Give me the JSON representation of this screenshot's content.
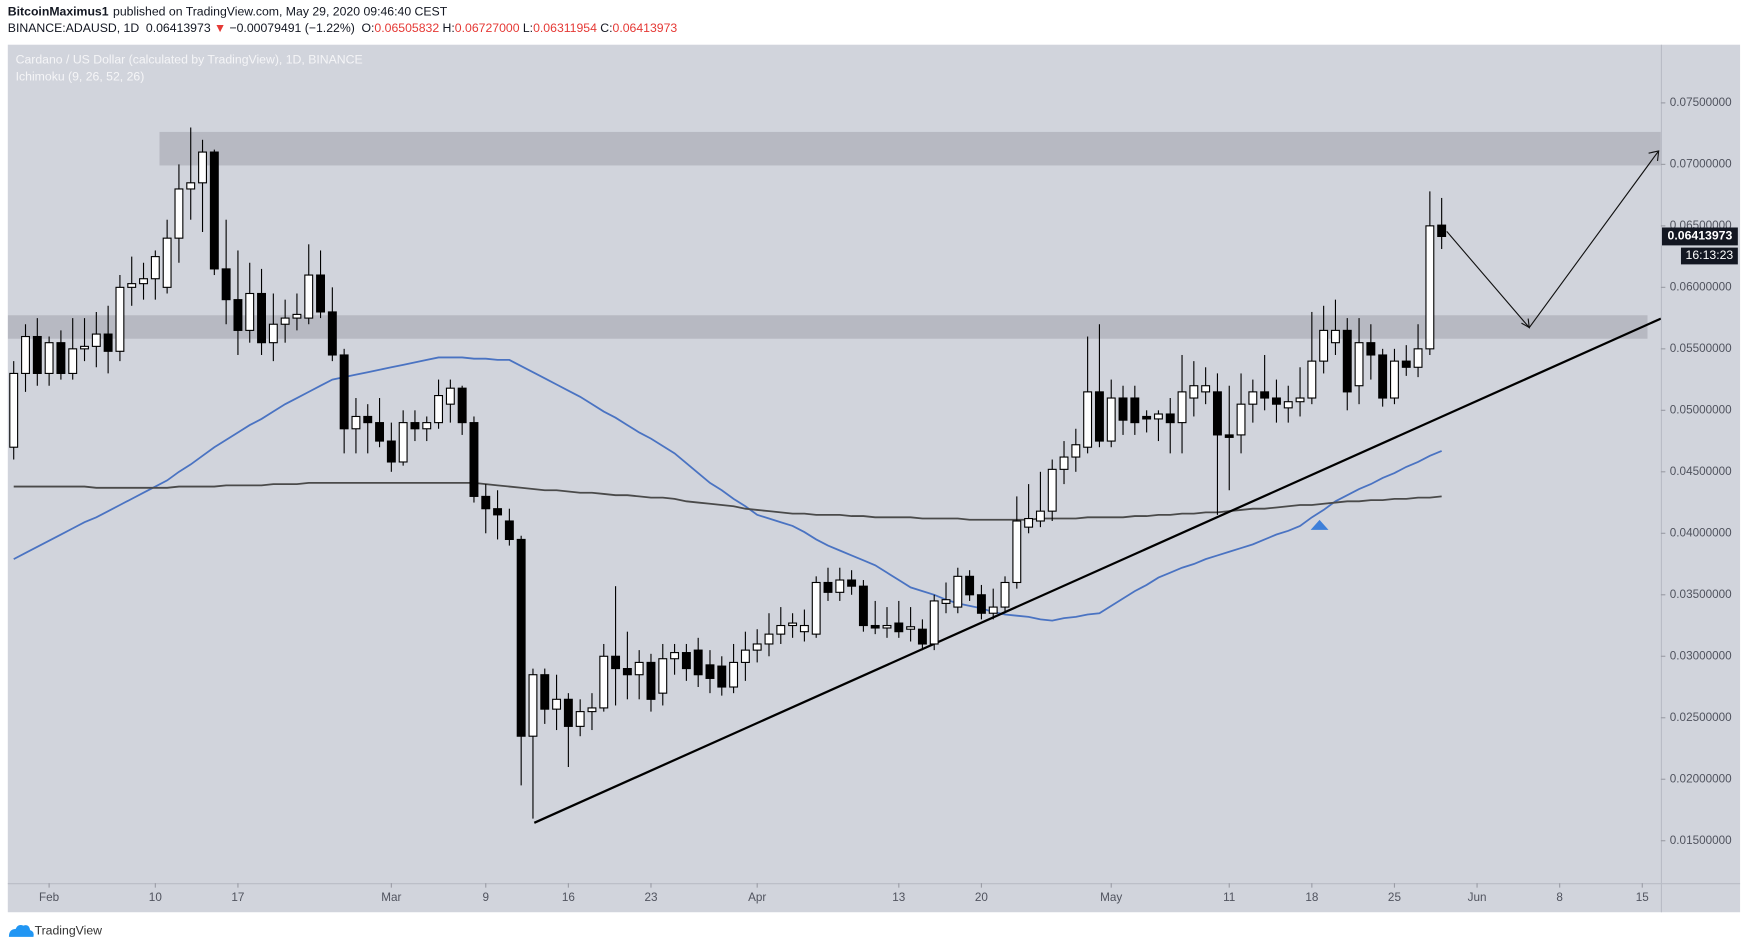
{
  "header": {
    "author": "BitcoinMaximus1",
    "published": "published on TradingView.com, May 29, 2020 09:46:40 CEST",
    "symbol": "BINANCE:ADAUSD, 1D",
    "last": "0.06413973",
    "arrow": "▼",
    "change": "−0.00079491 (−1.22%)",
    "ohlc": [
      {
        "label": "O:",
        "value": "0.06505832"
      },
      {
        "label": "H:",
        "value": "0.06727000"
      },
      {
        "label": "L:",
        "value": "0.06311954"
      },
      {
        "label": "C:",
        "value": "0.06413973"
      }
    ]
  },
  "chart_data": {
    "type": "candlestick",
    "title": "Cardano / US Dollar (calculated by TradingView), 1D, BINANCE",
    "subtitle": "Ichimoku (9, 26, 52, 26)",
    "last_price_label": "0.06413973",
    "countdown": "16:13:23",
    "up_color": "#ffffff",
    "down_color": "#000000",
    "wick_color": "#000000",
    "categories": [
      null,
      null,
      null,
      "Feb",
      null,
      null,
      null,
      null,
      null,
      null,
      null,
      null,
      "10",
      null,
      null,
      null,
      null,
      null,
      null,
      "17",
      null,
      null,
      null,
      null,
      null,
      null,
      null,
      null,
      null,
      null,
      null,
      null,
      "Mar",
      null,
      null,
      null,
      null,
      null,
      null,
      null,
      "9",
      null,
      null,
      null,
      null,
      null,
      null,
      "16",
      null,
      null,
      null,
      null,
      null,
      null,
      "23",
      null,
      null,
      null,
      null,
      null,
      null,
      null,
      null,
      "Apr",
      null,
      null,
      null,
      null,
      null,
      null,
      null,
      null,
      null,
      null,
      null,
      "13",
      null,
      null,
      null,
      null,
      null,
      null,
      "20",
      null,
      null,
      null,
      null,
      null,
      null,
      null,
      null,
      null,
      null,
      "May",
      null,
      null,
      null,
      null,
      null,
      null,
      null,
      null,
      null,
      "11",
      null,
      null,
      null,
      null,
      null,
      null,
      "18",
      null,
      null,
      null,
      null,
      null,
      null,
      "25",
      null,
      null,
      null,
      null,
      null,
      null,
      "Jun",
      null,
      null,
      null,
      null,
      null,
      null,
      "8",
      null,
      null,
      null,
      null,
      null,
      null,
      "15",
      null,
      null
    ],
    "open": [
      0.047,
      0.053,
      0.056,
      0.053,
      0.0555,
      0.053,
      0.055,
      0.0552,
      0.0562,
      0.0548,
      0.06,
      0.0603,
      0.0607,
      0.06,
      0.064,
      0.068,
      0.0685,
      0.071,
      0.0615,
      0.059,
      0.0565,
      0.0595,
      0.0555,
      0.057,
      0.0575,
      0.0575,
      0.061,
      0.058,
      0.0545,
      0.0485,
      0.0495,
      0.049,
      0.0475,
      0.0458,
      0.049,
      0.0485,
      0.049,
      0.0505,
      0.0518,
      0.049,
      0.043,
      0.042,
      0.041,
      0.0395,
      0.0235,
      0.0285,
      0.0257,
      0.0265,
      0.0243,
      0.0255,
      0.0258,
      0.03,
      0.029,
      0.0285,
      0.0295,
      0.027,
      0.0298,
      0.0303,
      0.0305,
      0.0293,
      0.0292,
      0.0275,
      0.0295,
      0.0305,
      0.031,
      0.0318,
      0.0325,
      0.032,
      0.0318,
      0.036,
      0.0352,
      0.0362,
      0.0357,
      0.0325,
      0.0323,
      0.0327,
      0.0322,
      0.0322,
      0.031,
      0.0343,
      0.034,
      0.0365,
      0.035,
      0.0335,
      0.034,
      0.036,
      0.0405,
      0.041,
      0.0418,
      0.0452,
      0.0462,
      0.047,
      0.0515,
      0.0475,
      0.051,
      0.051,
      0.0495,
      0.0493,
      0.0497,
      0.049,
      0.051,
      0.0515,
      0.0515,
      0.048,
      0.048,
      0.0505,
      0.0515,
      0.051,
      0.0502,
      0.0507,
      0.051,
      0.054,
      0.0555,
      0.0565,
      0.052,
      0.0555,
      0.0545,
      0.051,
      0.054,
      0.0535,
      0.055,
      0.06505832,
      null,
      null,
      null,
      null,
      null,
      null,
      null,
      null,
      null,
      null,
      null,
      null,
      null,
      null,
      null,
      null,
      null,
      null,
      null
    ],
    "high": [
      0.054,
      0.057,
      0.0575,
      0.056,
      0.0565,
      0.0575,
      0.0575,
      0.058,
      0.0585,
      0.061,
      0.0625,
      0.062,
      0.063,
      0.0655,
      0.07,
      0.073,
      0.072,
      0.0712,
      0.0655,
      0.063,
      0.062,
      0.0615,
      0.0595,
      0.059,
      0.0595,
      0.0635,
      0.063,
      0.06,
      0.055,
      0.051,
      0.0505,
      0.051,
      0.049,
      0.05,
      0.05,
      0.0495,
      0.0525,
      0.0525,
      0.052,
      0.0495,
      0.044,
      0.0435,
      0.042,
      0.0398,
      0.029,
      0.029,
      0.0285,
      0.027,
      0.0265,
      0.027,
      0.031,
      0.0357,
      0.032,
      0.0305,
      0.0302,
      0.031,
      0.031,
      0.031,
      0.0315,
      0.0305,
      0.03,
      0.031,
      0.032,
      0.0322,
      0.0335,
      0.034,
      0.0335,
      0.0338,
      0.0365,
      0.0372,
      0.0372,
      0.037,
      0.0362,
      0.0345,
      0.034,
      0.0345,
      0.034,
      0.033,
      0.035,
      0.036,
      0.0372,
      0.037,
      0.0358,
      0.0355,
      0.0365,
      0.043,
      0.044,
      0.045,
      0.046,
      0.0475,
      0.0485,
      0.056,
      0.057,
      0.0525,
      0.052,
      0.052,
      0.05,
      0.05,
      0.051,
      0.0545,
      0.054,
      0.0535,
      0.053,
      0.052,
      0.053,
      0.0525,
      0.0545,
      0.0525,
      0.052,
      0.0535,
      0.058,
      0.0585,
      0.059,
      0.0575,
      0.0575,
      0.057,
      0.055,
      0.055,
      0.0553,
      0.057,
      0.0678,
      0.06727,
      null,
      null,
      null,
      null,
      null,
      null,
      null,
      null,
      null,
      null,
      null,
      null,
      null,
      null,
      null,
      null,
      null,
      null,
      null
    ],
    "low": [
      0.046,
      0.0515,
      0.052,
      0.052,
      0.0525,
      0.0525,
      0.054,
      0.0535,
      0.053,
      0.054,
      0.0585,
      0.059,
      0.059,
      0.0595,
      0.062,
      0.0655,
      0.0645,
      0.061,
      0.057,
      0.0545,
      0.0555,
      0.0545,
      0.054,
      0.0555,
      0.0565,
      0.057,
      0.0575,
      0.054,
      0.0465,
      0.0465,
      0.0465,
      0.047,
      0.045,
      0.0455,
      0.0475,
      0.0475,
      0.0485,
      0.049,
      0.048,
      0.0425,
      0.04,
      0.0395,
      0.039,
      0.0195,
      0.0168,
      0.0245,
      0.024,
      0.021,
      0.0235,
      0.024,
      0.0255,
      0.026,
      0.0265,
      0.0265,
      0.0255,
      0.026,
      0.0285,
      0.028,
      0.0275,
      0.027,
      0.0268,
      0.027,
      0.028,
      0.0295,
      0.03,
      0.031,
      0.0315,
      0.0312,
      0.0315,
      0.0345,
      0.0345,
      0.035,
      0.032,
      0.0318,
      0.0315,
      0.0315,
      0.0312,
      0.0305,
      0.0305,
      0.0335,
      0.0335,
      0.0345,
      0.033,
      0.033,
      0.0335,
      0.0355,
      0.04,
      0.0405,
      0.041,
      0.044,
      0.045,
      0.0465,
      0.047,
      0.047,
      0.048,
      0.048,
      0.0482,
      0.0475,
      0.0465,
      0.0465,
      0.0495,
      0.0505,
      0.0415,
      0.0435,
      0.0465,
      0.049,
      0.05,
      0.049,
      0.049,
      0.0495,
      0.0505,
      0.053,
      0.0545,
      0.05,
      0.0505,
      0.0525,
      0.0503,
      0.0505,
      0.0528,
      0.0527,
      0.0545,
      0.06311954,
      null,
      null,
      null,
      null,
      null,
      null,
      null,
      null,
      null,
      null,
      null,
      null,
      null,
      null,
      null,
      null,
      null,
      null,
      null
    ],
    "close": [
      0.053,
      0.056,
      0.053,
      0.0555,
      0.053,
      0.055,
      0.0552,
      0.0562,
      0.0548,
      0.06,
      0.0603,
      0.0607,
      0.0625,
      0.064,
      0.068,
      0.0685,
      0.071,
      0.0615,
      0.059,
      0.0565,
      0.0595,
      0.0555,
      0.057,
      0.0575,
      0.0578,
      0.061,
      0.058,
      0.0545,
      0.0485,
      0.0495,
      0.049,
      0.0475,
      0.0458,
      0.049,
      0.0485,
      0.049,
      0.0512,
      0.0518,
      0.049,
      0.043,
      0.042,
      0.0415,
      0.0395,
      0.0235,
      0.0285,
      0.0257,
      0.0265,
      0.0243,
      0.0255,
      0.0258,
      0.03,
      0.029,
      0.0285,
      0.0295,
      0.0265,
      0.0298,
      0.0303,
      0.029,
      0.0285,
      0.0282,
      0.0275,
      0.0295,
      0.0305,
      0.031,
      0.0318,
      0.0325,
      0.0327,
      0.0325,
      0.036,
      0.0352,
      0.0362,
      0.0357,
      0.0325,
      0.0323,
      0.0325,
      0.032,
      0.0324,
      0.031,
      0.0345,
      0.0346,
      0.0365,
      0.035,
      0.0335,
      0.034,
      0.036,
      0.041,
      0.0412,
      0.0418,
      0.0452,
      0.0462,
      0.0472,
      0.0515,
      0.0475,
      0.051,
      0.0492,
      0.049,
      0.0493,
      0.0497,
      0.049,
      0.0515,
      0.052,
      0.052,
      0.048,
      0.0478,
      0.0505,
      0.0515,
      0.051,
      0.0505,
      0.0507,
      0.051,
      0.054,
      0.0565,
      0.0565,
      0.0515,
      0.0555,
      0.0545,
      0.051,
      0.054,
      0.0535,
      0.055,
      0.065,
      0.06413973,
      null,
      null,
      null,
      null,
      null,
      null,
      null,
      null,
      null,
      null,
      null,
      null,
      null,
      null,
      null,
      null,
      null,
      null,
      null
    ],
    "lines": [
      {
        "color": "#4a73c2",
        "values": [
          0.0379,
          0.0384,
          0.0389,
          0.0394,
          0.0399,
          0.0404,
          0.0409,
          0.0413,
          0.0418,
          0.0423,
          0.0428,
          0.0433,
          0.0438,
          0.0443,
          0.045,
          0.0456,
          0.0463,
          0.047,
          0.0476,
          0.0482,
          0.0488,
          0.0493,
          0.0499,
          0.0505,
          0.051,
          0.0515,
          0.052,
          0.0525,
          0.0527,
          0.0529,
          0.0531,
          0.0533,
          0.0535,
          0.0537,
          0.0539,
          0.0541,
          0.0543,
          0.0543,
          0.0543,
          0.0542,
          0.0542,
          0.0541,
          0.0541,
          0.0536,
          0.0531,
          0.0526,
          0.0521,
          0.0516,
          0.0511,
          0.0505,
          0.0499,
          0.0494,
          0.0488,
          0.0482,
          0.0477,
          0.0471,
          0.0465,
          0.0457,
          0.0449,
          0.0441,
          0.0435,
          0.0428,
          0.0422,
          0.0415,
          0.0412,
          0.0409,
          0.0406,
          0.0401,
          0.0395,
          0.039,
          0.0386,
          0.0382,
          0.0378,
          0.0374,
          0.0368,
          0.0362,
          0.0356,
          0.0353,
          0.035,
          0.0346,
          0.0343,
          0.0341,
          0.0339,
          0.0336,
          0.0334,
          0.0333,
          0.0332,
          0.033,
          0.0329,
          0.0331,
          0.0332,
          0.0334,
          0.0335,
          0.0341,
          0.0347,
          0.0353,
          0.0358,
          0.0364,
          0.0368,
          0.0372,
          0.0375,
          0.0379,
          0.0382,
          0.0385,
          0.0388,
          0.0391,
          0.0395,
          0.0399,
          0.0402,
          0.0406,
          0.0413,
          0.0419,
          0.0426,
          0.0431,
          0.0436,
          0.044,
          0.0445,
          0.0449,
          0.0454,
          0.0458,
          0.0463,
          0.0467,
          null,
          null,
          null,
          null,
          null,
          null,
          null,
          null,
          null,
          null,
          null,
          null,
          null,
          null,
          null,
          null,
          null,
          null,
          null
        ]
      },
      {
        "color": "#4a4a4a",
        "values": [
          0.0438,
          0.0438,
          0.0438,
          0.0438,
          0.0438,
          0.0438,
          0.0438,
          0.0437,
          0.0437,
          0.0437,
          0.0437,
          0.0437,
          0.0437,
          0.0437,
          0.0438,
          0.0438,
          0.0438,
          0.0438,
          0.0439,
          0.0439,
          0.0439,
          0.0439,
          0.044,
          0.044,
          0.044,
          0.0441,
          0.0441,
          0.0441,
          0.0441,
          0.0441,
          0.0441,
          0.0441,
          0.0441,
          0.0441,
          0.0441,
          0.0441,
          0.0441,
          0.0441,
          0.0441,
          0.0441,
          0.044,
          0.0439,
          0.0438,
          0.0437,
          0.0436,
          0.0435,
          0.0435,
          0.0434,
          0.0433,
          0.0433,
          0.0432,
          0.0431,
          0.0431,
          0.043,
          0.0429,
          0.0429,
          0.0428,
          0.0426,
          0.0425,
          0.0424,
          0.0423,
          0.0422,
          0.042,
          0.0419,
          0.0418,
          0.0417,
          0.0416,
          0.0416,
          0.0415,
          0.0415,
          0.0415,
          0.0414,
          0.0414,
          0.0413,
          0.0413,
          0.0413,
          0.0413,
          0.0412,
          0.0412,
          0.0412,
          0.0412,
          0.0411,
          0.0411,
          0.0411,
          0.0411,
          0.0411,
          0.0411,
          0.0412,
          0.0412,
          0.0412,
          0.0412,
          0.0413,
          0.0413,
          0.0413,
          0.0413,
          0.0414,
          0.0414,
          0.0415,
          0.0415,
          0.0416,
          0.0416,
          0.0417,
          0.0417,
          0.0418,
          0.0419,
          0.042,
          0.042,
          0.0421,
          0.0422,
          0.0423,
          0.0423,
          0.0424,
          0.0425,
          0.0426,
          0.0426,
          0.0427,
          0.0427,
          0.0428,
          0.0428,
          0.0429,
          0.0429,
          0.043,
          null,
          null,
          null,
          null,
          null,
          null,
          null,
          null,
          null,
          null,
          null,
          null,
          null,
          null,
          null,
          null,
          null,
          null,
          null
        ]
      }
    ],
    "ylim": [
      0.01155,
      0.07973
    ],
    "yticks": [
      {
        "value": 0.015,
        "label": "0.01500000"
      },
      {
        "value": 0.02,
        "label": "0.02000000"
      },
      {
        "value": 0.025,
        "label": "0.02500000"
      },
      {
        "value": 0.03,
        "label": "0.03000000"
      },
      {
        "value": 0.035,
        "label": "0.03500000"
      },
      {
        "value": 0.04,
        "label": "0.04000000"
      },
      {
        "value": 0.045,
        "label": "0.04500000"
      },
      {
        "value": 0.05,
        "label": "0.05000000"
      },
      {
        "value": 0.055,
        "label": "0.05500000"
      },
      {
        "value": 0.06,
        "label": "0.06000000"
      },
      {
        "value": 0.065,
        "label": "0.06500000"
      },
      {
        "value": 0.07,
        "label": "0.07000000"
      },
      {
        "value": 0.075,
        "label": "0.07500000"
      }
    ]
  },
  "footer": {
    "brand": "TradingView"
  }
}
